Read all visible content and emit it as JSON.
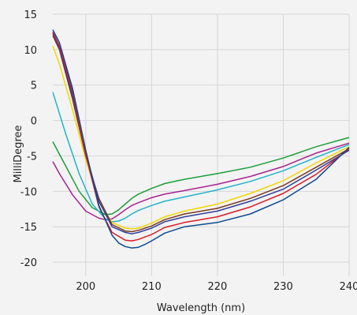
{
  "chart_data": {
    "type": "line",
    "xlabel": "Wavelength (nm)",
    "ylabel": "MilliDegree",
    "xlim": [
      195,
      240
    ],
    "ylim": [
      -22,
      15
    ],
    "grid": true,
    "x_ticks": [
      200,
      210,
      220,
      230,
      240
    ],
    "y_ticks": [
      15,
      10,
      5,
      0,
      -5,
      -10,
      -15,
      -20
    ],
    "x_tick_labels": [
      "200",
      "210",
      "220",
      "230",
      "240"
    ],
    "y_tick_labels": [
      "15",
      "10",
      "5",
      "0",
      "-5",
      "-10",
      "-15",
      "-20"
    ],
    "series": [
      {
        "color": "#1b9e3a",
        "x": [
          195,
          197,
          199,
          201,
          203,
          204,
          205,
          206,
          207,
          208,
          210,
          212,
          215,
          220,
          225,
          230,
          235,
          240
        ],
        "y": [
          -3,
          -6.5,
          -10,
          -12.3,
          -13.3,
          -13.2,
          -12.6,
          -11.8,
          -11,
          -10.4,
          -9.6,
          -8.9,
          -8.3,
          -7.5,
          -6.6,
          -5.3,
          -3.7,
          -2.4
        ]
      },
      {
        "color": "#a8238f",
        "x": [
          195,
          196,
          198,
          200,
          202,
          203,
          204,
          205,
          206,
          207,
          208,
          210,
          212,
          215,
          220,
          225,
          230,
          235,
          240
        ],
        "y": [
          -5.8,
          -7.5,
          -10.5,
          -12.8,
          -13.8,
          -14,
          -13.9,
          -13.3,
          -12.6,
          -12,
          -11.6,
          -10.9,
          -10.4,
          -9.9,
          -9,
          -7.9,
          -6.5,
          -4.6,
          -3.2
        ]
      },
      {
        "color": "#22b3c7",
        "x": [
          195,
          197,
          199,
          201,
          203,
          204,
          205,
          206,
          207,
          208,
          210,
          212,
          215,
          220,
          225,
          230,
          235,
          240
        ],
        "y": [
          4,
          -2,
          -7.5,
          -11.8,
          -13.9,
          -14.3,
          -14.2,
          -13.8,
          -13.2,
          -12.7,
          -12,
          -11.4,
          -10.8,
          -9.8,
          -8.6,
          -7.1,
          -5.2,
          -3.4
        ]
      },
      {
        "color": "#f1d600",
        "x": [
          195,
          196,
          198,
          200,
          202,
          204,
          206,
          207,
          208,
          210,
          212,
          215,
          220,
          225,
          230,
          235,
          240
        ],
        "y": [
          10.5,
          8,
          1.5,
          -5.5,
          -11.5,
          -14.4,
          -15.2,
          -15.3,
          -15.2,
          -14.5,
          -13.6,
          -12.8,
          -11.8,
          -10.3,
          -8.5,
          -6,
          -3.7
        ]
      },
      {
        "color": "#7a3a1e",
        "x": [
          195,
          196,
          198,
          200,
          202,
          204,
          206,
          207,
          208,
          210,
          212,
          215,
          220,
          225,
          230,
          235,
          240
        ],
        "y": [
          12,
          10,
          3,
          -5,
          -11,
          -14.7,
          -15.6,
          -15.7,
          -15.5,
          -14.9,
          -14,
          -13.2,
          -12.4,
          -11,
          -9.2,
          -6.6,
          -4
        ]
      },
      {
        "color": "#2d3f9e",
        "x": [
          195,
          196,
          198,
          200,
          202,
          204,
          206,
          207,
          208,
          210,
          212,
          215,
          220,
          225,
          230,
          235,
          240
        ],
        "y": [
          12.3,
          10.2,
          3.5,
          -4.5,
          -11.4,
          -15,
          -15.8,
          -16,
          -15.8,
          -15.2,
          -14.3,
          -13.6,
          -12.8,
          -11.4,
          -9.7,
          -7,
          -4.2
        ]
      },
      {
        "color": "#d81c2a",
        "x": [
          195,
          196,
          198,
          200,
          202,
          204,
          206,
          207,
          208,
          210,
          212,
          215,
          220,
          225,
          230,
          235,
          240
        ],
        "y": [
          12.5,
          10.5,
          4,
          -4.8,
          -12.2,
          -15.8,
          -16.9,
          -17,
          -16.8,
          -16.1,
          -15.1,
          -14.4,
          -13.6,
          -12.2,
          -10.3,
          -7.6,
          -4
        ]
      },
      {
        "color": "#0d4a8f",
        "x": [
          195,
          196,
          198,
          200,
          202,
          204,
          205,
          206,
          207,
          208,
          209,
          210,
          212,
          215,
          220,
          225,
          230,
          235,
          240
        ],
        "y": [
          12.8,
          11,
          4.5,
          -4.2,
          -12,
          -16.2,
          -17.3,
          -17.8,
          -18,
          -17.9,
          -17.5,
          -17,
          -15.9,
          -15,
          -14.4,
          -13.2,
          -11.2,
          -8.3,
          -3.8
        ]
      }
    ]
  }
}
